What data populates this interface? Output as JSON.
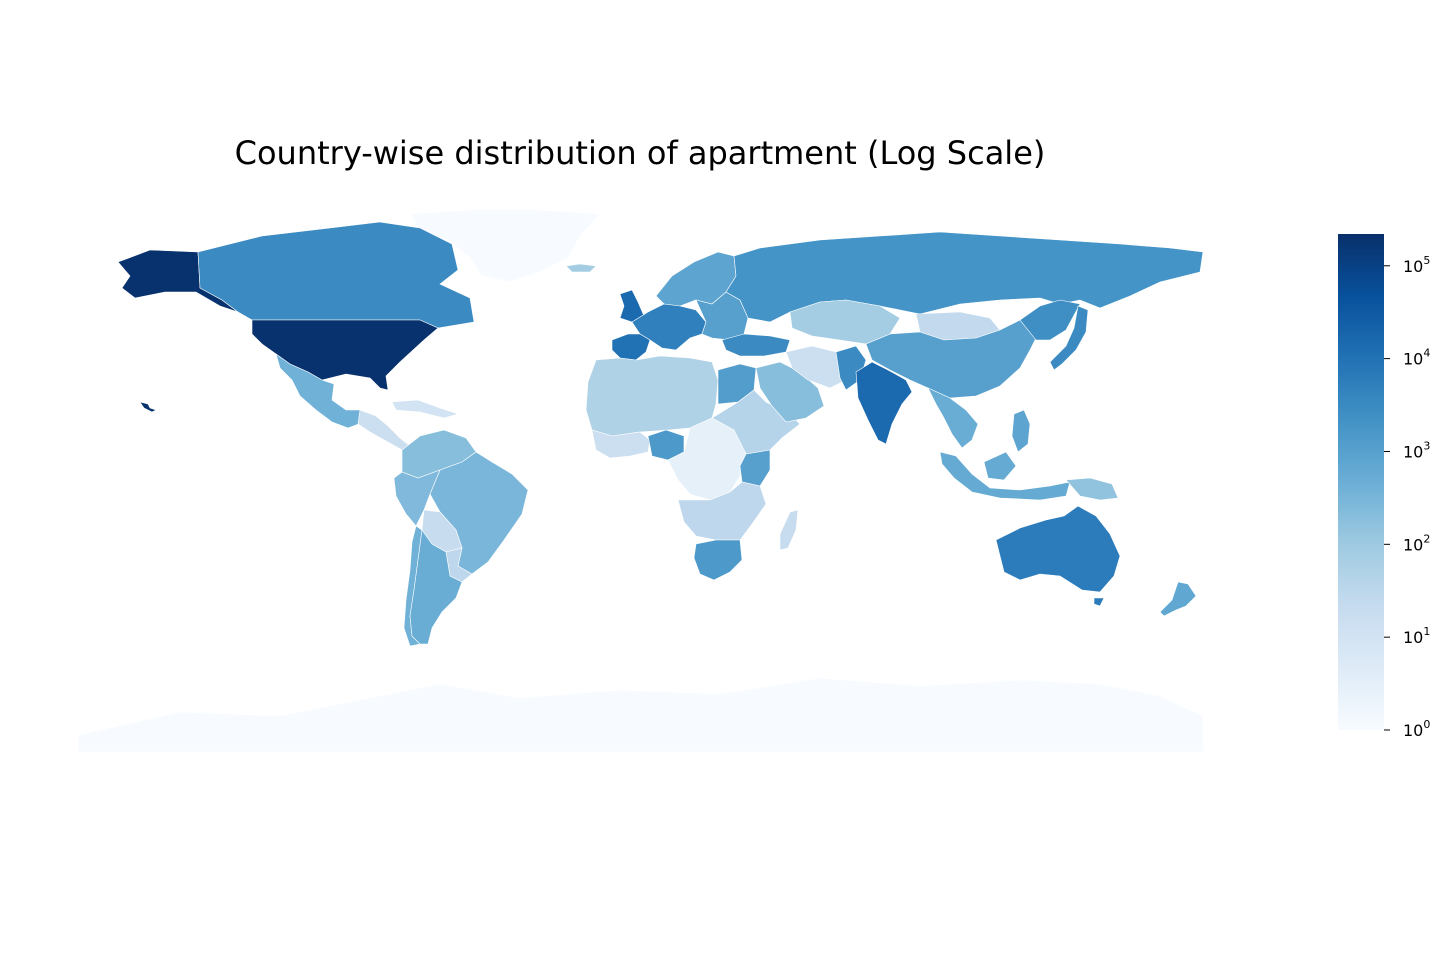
{
  "title": "Country-wise distribution of apartment (Log Scale)",
  "colorbar": {
    "scale": "log",
    "range": [
      1,
      220000
    ],
    "colormap": "Blues",
    "low_color": "#f7fbff",
    "high_color": "#08306b",
    "ticks": [
      {
        "value": 1,
        "base": "10",
        "exp": "0"
      },
      {
        "value": 10,
        "base": "10",
        "exp": "1"
      },
      {
        "value": 100,
        "base": "10",
        "exp": "2"
      },
      {
        "value": 1000,
        "base": "10",
        "exp": "3"
      },
      {
        "value": 10000,
        "base": "10",
        "exp": "4"
      },
      {
        "value": 100000,
        "base": "10",
        "exp": "5"
      }
    ]
  },
  "regions": [
    {
      "id": "greenland",
      "value": 1
    },
    {
      "id": "antarctica",
      "value": 1
    },
    {
      "id": "alaska",
      "value": 200000
    },
    {
      "id": "usa",
      "value": 200000
    },
    {
      "id": "canada",
      "value": 3000
    },
    {
      "id": "mexico",
      "value": 400
    },
    {
      "id": "central-america",
      "value": 15
    },
    {
      "id": "caribbean",
      "value": 10
    },
    {
      "id": "colombia-venezuela",
      "value": 200
    },
    {
      "id": "brazil",
      "value": 300
    },
    {
      "id": "peru",
      "value": 250
    },
    {
      "id": "bolivia",
      "value": 20
    },
    {
      "id": "paraguay",
      "value": 30
    },
    {
      "id": "chile",
      "value": 400
    },
    {
      "id": "argentina",
      "value": 500
    },
    {
      "id": "uk",
      "value": 15000
    },
    {
      "id": "iberia",
      "value": 10000
    },
    {
      "id": "western-europe",
      "value": 5000
    },
    {
      "id": "scandinavia",
      "value": 800
    },
    {
      "id": "eastern-europe",
      "value": 1000
    },
    {
      "id": "russia",
      "value": 2000
    },
    {
      "id": "turkey",
      "value": 3000
    },
    {
      "id": "north-africa",
      "value": 50
    },
    {
      "id": "egypt",
      "value": 1200
    },
    {
      "id": "west-africa",
      "value": 15
    },
    {
      "id": "nigeria",
      "value": 1500
    },
    {
      "id": "central-africa",
      "value": 3
    },
    {
      "id": "east-africa",
      "value": 40
    },
    {
      "id": "kenya",
      "value": 1000
    },
    {
      "id": "southern-africa-north",
      "value": 30
    },
    {
      "id": "south-africa",
      "value": 1500
    },
    {
      "id": "madagascar",
      "value": 20
    },
    {
      "id": "arabia",
      "value": 200
    },
    {
      "id": "iran-afghanistan",
      "value": 15
    },
    {
      "id": "pakistan",
      "value": 3000
    },
    {
      "id": "india",
      "value": 15000
    },
    {
      "id": "kazakhstan",
      "value": 80
    },
    {
      "id": "mongolia",
      "value": 25
    },
    {
      "id": "china",
      "value": 1000
    },
    {
      "id": "japan",
      "value": 3000
    },
    {
      "id": "korea",
      "value": 2500
    },
    {
      "id": "southeast-asia",
      "value": 500
    },
    {
      "id": "indonesia",
      "value": 600
    },
    {
      "id": "philippines",
      "value": 800
    },
    {
      "id": "papua",
      "value": 150
    },
    {
      "id": "australia",
      "value": 6000
    },
    {
      "id": "new-zealand",
      "value": 700
    },
    {
      "id": "iceland",
      "value": 80
    },
    {
      "id": "hawaii",
      "value": 200000
    }
  ]
}
